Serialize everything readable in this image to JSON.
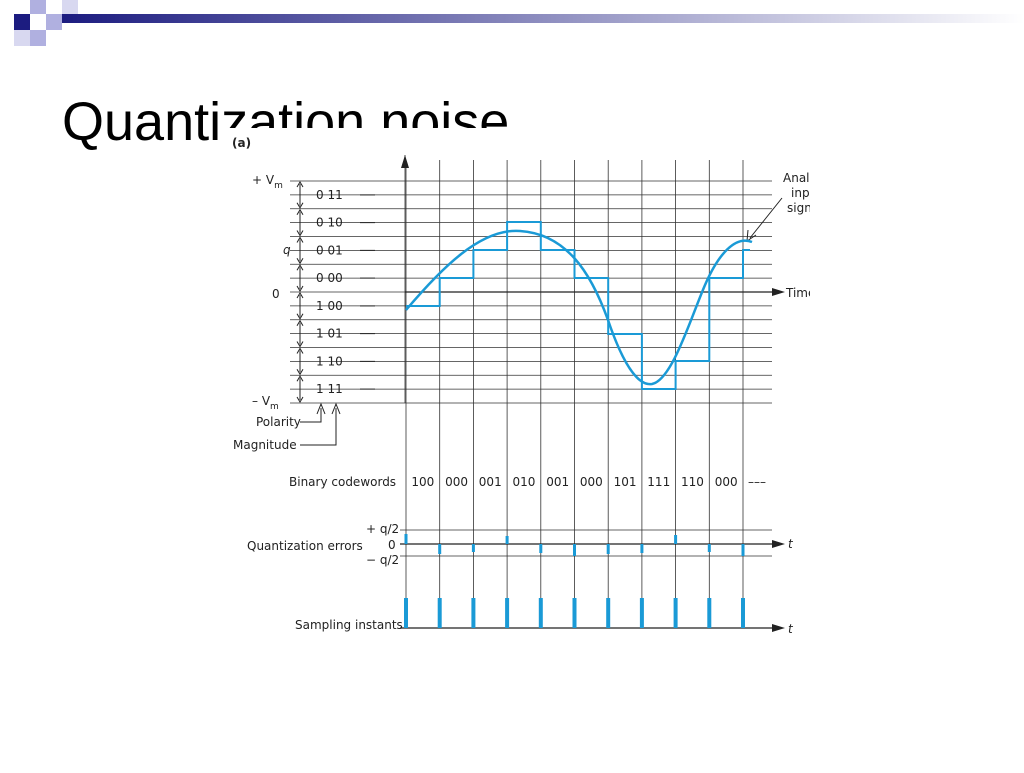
{
  "title": "Quantization noise",
  "figure": {
    "panel": "(a)",
    "vmax_label": "+ V",
    "vmax_sub": "m",
    "vmin_label": "– V",
    "vmin_sub": "m",
    "step_label": "q",
    "zero_label": "0",
    "levels": [
      "0 11",
      "0 10",
      "0 01",
      "0 00",
      "1 00",
      "1 01",
      "1 10",
      "1 11"
    ],
    "polarity": "Polarity",
    "magnitude": "Magnitude",
    "analog": [
      "Analog",
      "input",
      "signal"
    ],
    "time": "Time",
    "codewords_label": "Binary codewords",
    "codewords": [
      "100",
      "000",
      "001",
      "010",
      "001",
      "000",
      "101",
      "111",
      "110",
      "000",
      "–––"
    ],
    "errors_label": "Quantization errors",
    "err_plus": "+ q/2",
    "err_zero": "0",
    "err_minus": "− q/2",
    "t1": "t",
    "sampling_label": "Sampling instants",
    "t2": "t"
  }
}
